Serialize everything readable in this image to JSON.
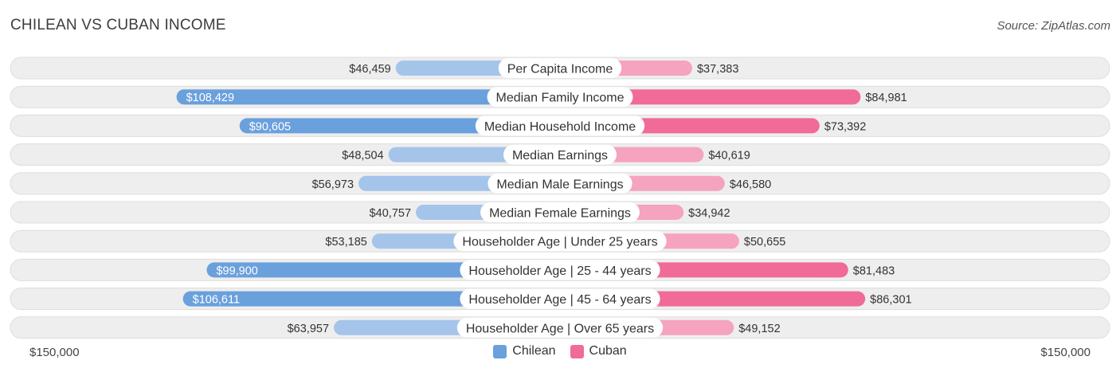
{
  "title": "CHILEAN VS CUBAN INCOME",
  "source": "Source: ZipAtlas.com",
  "colors": {
    "chilean_strong": "#6aa0dc",
    "chilean_light": "#a5c4ea",
    "cuban_strong": "#f06b98",
    "cuban_light": "#f5a3bf",
    "row_bg": "#eeeeee"
  },
  "legend": [
    {
      "label": "Chilean",
      "color": "#6aa0dc"
    },
    {
      "label": "Cuban",
      "color": "#f06b98"
    }
  ],
  "axis": {
    "left_label": "$150,000",
    "right_label": "$150,000"
  },
  "chart_data": {
    "type": "bar",
    "orientation": "horizontal-diverging",
    "title": "CHILEAN VS CUBAN INCOME",
    "max_value": 150000,
    "categories": [
      "Per Capita Income",
      "Median Family Income",
      "Median Household Income",
      "Median Earnings",
      "Median Male Earnings",
      "Median Female Earnings",
      "Householder Age | Under 25 years",
      "Householder Age | 25 - 44 years",
      "Householder Age | 45 - 64 years",
      "Householder Age | Over 65 years"
    ],
    "series": [
      {
        "name": "Chilean",
        "side": "left",
        "values": [
          46459,
          108429,
          90605,
          48504,
          56973,
          40757,
          53185,
          99900,
          106611,
          63957
        ],
        "labels": [
          "$46,459",
          "$108,429",
          "$90,605",
          "$48,504",
          "$56,973",
          "$40,757",
          "$53,185",
          "$99,900",
          "$106,611",
          "$63,957"
        ]
      },
      {
        "name": "Cuban",
        "side": "right",
        "values": [
          37383,
          84981,
          73392,
          40619,
          46580,
          34942,
          50655,
          81483,
          86301,
          49152
        ],
        "labels": [
          "$37,383",
          "$84,981",
          "$73,392",
          "$40,619",
          "$46,580",
          "$34,942",
          "$50,655",
          "$81,483",
          "$86,301",
          "$49,152"
        ]
      }
    ]
  }
}
